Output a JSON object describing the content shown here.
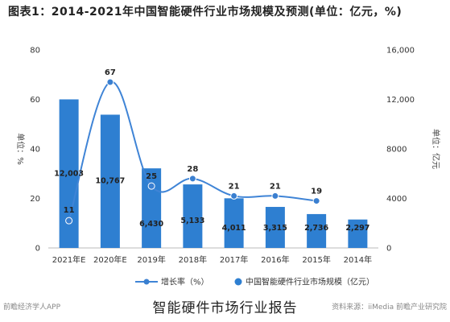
{
  "header": {
    "title": "图表1：2014-2021年中国智能硬件行业市场规模及预测(单位：亿元，%)"
  },
  "footer": {
    "caption": "智能硬件市场行业报告",
    "source_left": "前瞻经济学人APP",
    "source_right": "资料来源：iiMedia 前瞻产业研究院"
  },
  "colors": {
    "bar": "#2e7fd1",
    "line": "#3f84d6",
    "marker": "#3a7fd0"
  },
  "chart_data": {
    "type": "bar",
    "title": "图表1：2014-2021年中国智能硬件行业市场规模及预测(单位：亿元，%)",
    "categories": [
      "2021年E",
      "2020年E",
      "2019年",
      "2018年",
      "2017年",
      "2016年",
      "2015年",
      "2014年"
    ],
    "series": [
      {
        "name": "中国智能硬件行业市场规模（亿元）",
        "type": "bar",
        "axis": "right",
        "values": [
          12003,
          10767,
          6430,
          5133,
          4011,
          3315,
          2736,
          2297
        ],
        "labels": [
          "12,003",
          "10,767",
          "6,430",
          "5,133",
          "4,011",
          "3,315",
          "2,736",
          "2,297"
        ]
      },
      {
        "name": "增长率（%）",
        "type": "line",
        "axis": "left",
        "values": [
          11,
          67,
          25,
          28,
          21,
          21,
          19,
          null
        ],
        "labels": [
          "11",
          "67",
          "25",
          "28",
          "21",
          "21",
          "19",
          ""
        ]
      }
    ],
    "y_left": {
      "label": "单位：%",
      "ticks": [
        "0",
        "20",
        "40",
        "60",
        "80"
      ],
      "lim": [
        0,
        80
      ]
    },
    "y_right": {
      "label": "单位：亿元",
      "ticks": [
        "0",
        "4000",
        "8000",
        "12,000",
        "16,000"
      ],
      "lim": [
        0,
        16000
      ]
    },
    "legend": {
      "position": "bottom",
      "items": [
        "增长率（%）",
        "中国智能硬件行业市场规模（亿元）"
      ]
    },
    "grid": false
  }
}
